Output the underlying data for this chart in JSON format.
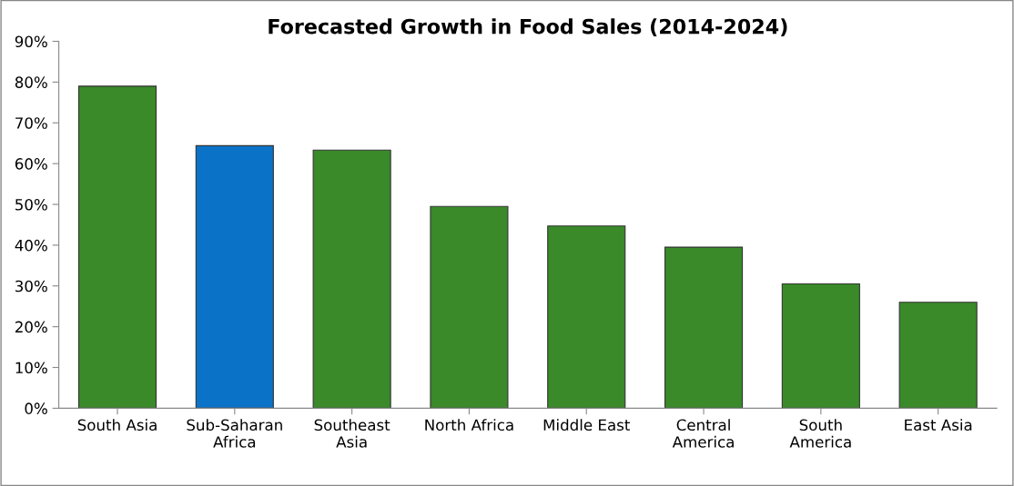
{
  "chart_data": {
    "type": "bar",
    "title": "Forecasted Growth in Food Sales (2014-2024)",
    "categories": [
      "South Asia",
      "Sub-Saharan\nAfrica",
      "Southeast\nAsia",
      "North Africa",
      "Middle East",
      "Central\nAmerica",
      "South\nAmerica",
      "East Asia"
    ],
    "values": [
      79,
      64.4,
      63.3,
      49.5,
      44.7,
      39.5,
      30.5,
      26
    ],
    "colors": [
      "#3a8a2a",
      "#0a73c8",
      "#3a8a2a",
      "#3a8a2a",
      "#3a8a2a",
      "#3a8a2a",
      "#3a8a2a",
      "#3a8a2a"
    ],
    "ylim": [
      0,
      90
    ],
    "yticks": [
      {
        "value": 0,
        "label": "0%"
      },
      {
        "value": 10,
        "label": "10%"
      },
      {
        "value": 20,
        "label": "20%"
      },
      {
        "value": 30,
        "label": "30%"
      },
      {
        "value": 40,
        "label": "40%"
      },
      {
        "value": 50,
        "label": "50%"
      },
      {
        "value": 60,
        "label": "60%"
      },
      {
        "value": 70,
        "label": "70%"
      },
      {
        "value": 80,
        "label": "80%"
      },
      {
        "value": 90,
        "label": "90%"
      }
    ],
    "grid": false
  }
}
